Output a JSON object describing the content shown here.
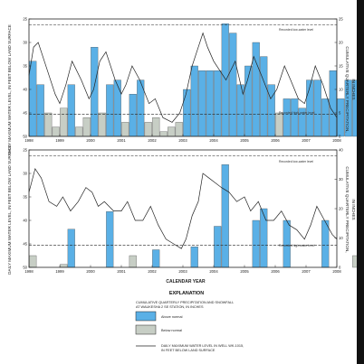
{
  "chart_data": [
    {
      "type": "bar",
      "panel": "top",
      "title": "",
      "ylabel_left": "DAILY MAXIMUM WATER LEVEL, IN FEET BELOW LAND SURFACE",
      "ylabel_right": "CUMULATIVE QUARTERLY PRECIPITATION, IN INCHES",
      "ylim_left": [
        50,
        25
      ],
      "yticks_left": [
        "25",
        "30",
        "35",
        "40",
        "45",
        "50"
      ],
      "ylim_right": [
        0,
        25
      ],
      "yticks_right": [
        "0",
        "5",
        "10",
        "15",
        "20",
        "25"
      ],
      "xlim": [
        1998,
        2008
      ],
      "xticks": [
        "1998",
        "1999",
        "2000",
        "2001",
        "2002",
        "2003",
        "2004",
        "2005",
        "2006",
        "2007",
        "2008"
      ],
      "reference_lines": [
        {
          "label": "Recorded low-water level",
          "value": 26.2
        },
        {
          "label": "Recorded high-water level",
          "value": 45.3
        }
      ],
      "bars": {
        "start_year": 1998,
        "quarter_width": 0.25,
        "values": [
          16,
          11,
          5,
          2,
          6,
          11,
          2,
          4,
          19,
          5,
          11,
          12,
          3,
          9,
          12,
          3,
          4,
          1,
          2,
          3,
          10,
          15,
          14,
          14,
          14,
          24,
          22,
          11,
          15,
          20,
          17,
          11,
          5,
          8,
          8,
          6,
          12,
          12,
          8,
          14,
          8,
          12,
          12,
          10,
          4,
          10,
          6,
          5
        ],
        "normal": [
          9,
          9,
          6,
          5,
          7,
          7,
          6,
          5,
          7,
          7,
          6,
          5,
          6,
          7,
          6,
          5,
          6,
          7,
          6,
          5,
          7,
          7,
          6,
          5,
          7,
          8,
          7,
          6,
          7,
          8,
          7,
          6,
          7,
          8,
          7,
          6,
          8,
          8,
          7,
          6,
          8,
          8,
          7,
          6,
          8,
          8,
          7,
          6
        ]
      },
      "water_level": {
        "x": [
          1998.0,
          1998.15,
          1998.3,
          1998.6,
          1998.85,
          1999.0,
          1999.2,
          1999.4,
          1999.7,
          1999.95,
          2000.1,
          2000.3,
          2000.5,
          2000.8,
          2001.0,
          2001.15,
          2001.35,
          2001.6,
          2001.9,
          2002.1,
          2002.35,
          2002.65,
          2002.9,
          2003.1,
          2003.3,
          2003.5,
          2003.65,
          2003.8,
          2004.0,
          2004.2,
          2004.4,
          2004.7,
          2004.95,
          2005.1,
          2005.3,
          2005.55,
          2005.85,
          2006.05,
          2006.3,
          2006.5,
          2006.75,
          2006.95,
          2007.1,
          2007.3,
          2007.55,
          2007.8,
          2008.0
        ],
        "y": [
          37,
          31,
          30,
          36,
          41,
          43,
          39,
          34,
          38,
          42,
          40,
          34,
          32,
          38,
          41,
          39,
          35,
          38,
          43,
          42,
          46,
          47,
          45,
          41,
          35,
          31,
          28,
          31,
          34,
          36,
          38,
          34,
          41,
          38,
          33,
          37,
          42,
          40,
          35,
          38,
          42,
          43,
          40,
          35,
          39,
          44,
          46
        ]
      }
    },
    {
      "type": "bar",
      "panel": "bottom",
      "title": "",
      "xlabel": "CALENDAR YEAR",
      "ylabel_left": "DAILY MAXIMUM WATER LEVEL, IN FEET BELOW LAND SURFACE",
      "ylabel_right": "CUMULATIVE QUARTERLY PRECIPITATION, IN INCHES",
      "ylim_left": [
        50,
        25
      ],
      "yticks_left": [
        "25",
        "30",
        "35",
        "40",
        "45",
        "50"
      ],
      "ylim_right": [
        0,
        40
      ],
      "yticks_right": [
        "0",
        "10",
        "20",
        "30",
        "40"
      ],
      "xlim": [
        1998,
        2008
      ],
      "xticks": [
        "1998",
        "1999",
        "2000",
        "2001",
        "2002",
        "2003",
        "2004",
        "2005",
        "2006",
        "2007",
        "2008"
      ],
      "reference_lines": [
        {
          "label": "Recorded low-water level",
          "value": 26.2
        },
        {
          "label": "Recorded high-water level",
          "value": 45.3
        }
      ],
      "bars": {
        "start_year": 1998,
        "quarter_width": 0.25,
        "values": [
          4,
          0,
          0,
          0,
          1,
          13,
          0,
          0,
          0,
          0,
          19,
          0,
          0,
          4,
          0,
          0,
          6,
          0,
          0,
          0,
          0,
          7,
          0,
          0,
          14,
          35,
          0,
          0,
          0,
          16,
          20,
          0,
          0,
          16,
          0,
          0,
          0,
          0,
          16,
          0,
          0,
          0,
          4,
          21,
          0,
          0,
          0,
          0
        ],
        "normal": [
          5,
          0,
          0,
          0,
          5,
          9,
          0,
          0,
          0,
          0,
          9,
          0,
          0,
          5,
          0,
          0,
          6,
          0,
          0,
          0,
          0,
          7,
          0,
          0,
          8,
          9,
          0,
          0,
          0,
          9,
          9,
          0,
          0,
          9,
          0,
          0,
          0,
          0,
          8,
          0,
          0,
          0,
          6,
          9,
          0,
          0,
          0,
          0
        ]
      },
      "water_level": {
        "x": [
          1998.0,
          1998.2,
          1998.4,
          1998.65,
          1998.9,
          1999.1,
          1999.35,
          1999.6,
          1999.85,
          2000.05,
          2000.25,
          2000.45,
          2000.75,
          2001.0,
          2001.2,
          2001.45,
          2001.7,
          2001.95,
          2002.2,
          2002.45,
          2002.7,
          2002.95,
          2003.1,
          2003.3,
          2003.5,
          2003.65,
          2003.85,
          2004.05,
          2004.25,
          2004.5,
          2004.75,
          2005.0,
          2005.2,
          2005.45,
          2005.7,
          2005.95,
          2006.2,
          2006.45,
          2006.7,
          2006.95,
          2007.15,
          2007.35,
          2007.6,
          2007.85,
          2008.0
        ],
        "y": [
          34,
          29,
          31,
          36,
          37,
          35,
          38,
          36,
          33,
          34,
          37,
          36,
          38,
          38,
          36,
          40,
          40,
          37,
          41,
          44,
          45,
          46,
          44,
          39,
          36,
          30,
          31,
          32,
          33,
          34,
          36,
          35,
          38,
          36,
          40,
          40,
          38,
          41,
          42,
          44,
          41,
          37,
          40,
          43,
          44
        ]
      }
    }
  ],
  "labels": {
    "low_level": "Recorded low-water level",
    "high_level": "Recorded high-water level",
    "xlabel": "CALENDAR YEAR",
    "ylabel_left": "DAILY MAXIMUM WATER LEVEL, IN FEET BELOW LAND SURFACE",
    "ylabel_right": "CUMULATIVE QUARTERLY PRECIPITATION, IN INCHES"
  },
  "explanation": {
    "title": "EXPLANATION",
    "subtitle_1": "CUMULATIVE QUARTERLY PRECIPITATION AND SNOWFALL",
    "subtitle_2": "AT WAUKESHA 2 SE STATION, IN INCHES",
    "above_label": "Above normal",
    "below_label": "Below normal",
    "line_label_1": "DAILY MAXIMUM WATER LEVEL IN WELL WK-1015,",
    "line_label_2": "IN FEET BELOW LAND SURFACE"
  },
  "colors": {
    "above_normal": "#5ab0e6",
    "below_normal": "#c7cec5",
    "line": "#222222",
    "axis": "#222222"
  }
}
